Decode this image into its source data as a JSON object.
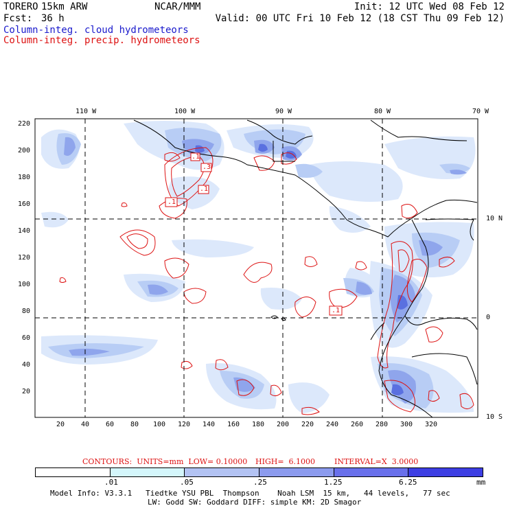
{
  "header": {
    "model": "TORERO",
    "resolution": "15km ARW",
    "org": "NCAR/MMM",
    "init": "Init: 12 UTC Wed 08 Feb 12",
    "fcst_label": "Fcst:",
    "fcst_value": "36 h",
    "valid": "Valid: 00 UTC Fri 10 Feb 12 (18 CST Thu 09 Feb 12)"
  },
  "fields": {
    "cloud": "Column-integ. cloud hydrometeors",
    "precip": "Column-integ. precip. hydrometeors"
  },
  "colors": {
    "cloud_field": "#dce8fb",
    "cloud_light": "#b8cdf5",
    "cloud_mid": "#8fa5ec",
    "cloud_strong": "#5a70e0",
    "precip_contour": "#dd1111",
    "coast": "#000000",
    "title_blue": "#1a1acc"
  },
  "map": {
    "lon_labels": [
      "110 W",
      "100 W",
      "90 W",
      "80 W",
      "70 W"
    ],
    "lat_labels": [
      "10 N",
      "0",
      "10 S"
    ],
    "y_ticks": [
      "220",
      "200",
      "180",
      "160",
      "140",
      "120",
      "100",
      "80",
      "60",
      "40",
      "20"
    ],
    "x_ticks": [
      "20",
      "40",
      "60",
      "80",
      "100",
      "120",
      "140",
      "160",
      "180",
      "200",
      "220",
      "240",
      "260",
      "280",
      "300",
      "320"
    ],
    "contour_labels": [
      ".1",
      ".3",
      ".1",
      ".1",
      ".1"
    ]
  },
  "contours": {
    "caption_units": "CONTOURS:  UNITS=mm  LOW= 0.10000",
    "caption_high": "HIGH=  6.1000",
    "caption_interval": "INTERVAL=X  3.0000"
  },
  "legend": {
    "colors": [
      "#ffffff",
      "#d4f6fb",
      "#b3c3f3",
      "#8c9bee",
      "#6970eb",
      "#3d3ee3",
      "#2020e0"
    ],
    "labels": [
      ".01",
      ".05",
      ".25",
      "1.25",
      "6.25"
    ],
    "unit": "mm"
  },
  "footer": {
    "line1": "Model Info: V3.3.1   Tiedtke YSU PBL  Thompson    Noah LSM  15 km,   44 levels,   77 sec",
    "line2": "LW: Godd SW: Goddard DIFF: simple KM: 2D Smagor"
  }
}
